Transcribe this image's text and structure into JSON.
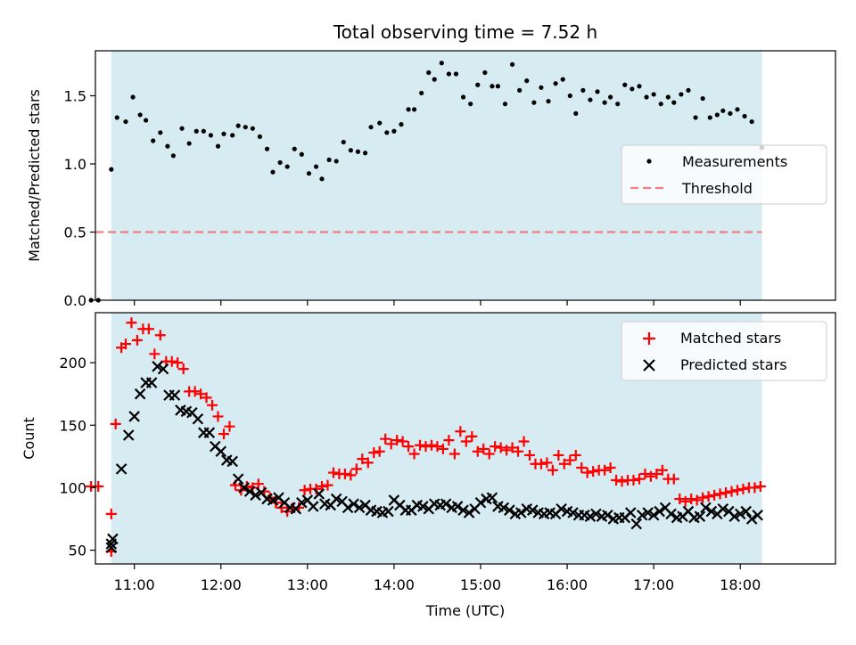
{
  "chart_data": [
    {
      "type": "scatter",
      "title": "Total observing time = 7.52 h",
      "xlabel": "",
      "ylabel": "Matched/Predicted stars",
      "xlim": [
        "10:33",
        "19:06"
      ],
      "ylim": [
        0,
        1.83
      ],
      "yticks": [
        0.0,
        0.5,
        1.0,
        1.5
      ],
      "yticklabels": [
        "0.0",
        "0.5",
        "1.0",
        "1.5"
      ],
      "grid": false,
      "legend_position": "center-right",
      "observing_window": [
        "10:44",
        "18:15"
      ],
      "threshold": {
        "name": "Threshold",
        "value": 0.5,
        "x_range": [
          "10:33",
          "18:15"
        ],
        "color": "#f08080"
      },
      "series": [
        {
          "name": "Measurements",
          "color": "#000000",
          "x": [
            "10:30",
            "10:35",
            "10:44",
            "10:48",
            "10:54",
            "10:59",
            "11:04",
            "11:08",
            "11:13",
            "11:18",
            "11:23",
            "11:27",
            "11:33",
            "11:38",
            "11:43",
            "11:48",
            "11:53",
            "11:58",
            "12:02",
            "12:08",
            "12:12",
            "12:17",
            "12:22",
            "12:27",
            "12:32",
            "12:36",
            "12:41",
            "12:46",
            "12:51",
            "12:56",
            "13:01",
            "13:06",
            "13:10",
            "13:15",
            "13:20",
            "13:25",
            "13:30",
            "13:35",
            "13:40",
            "13:44",
            "13:50",
            "13:55",
            "14:00",
            "14:05",
            "14:10",
            "14:14",
            "14:19",
            "14:24",
            "14:28",
            "14:33",
            "14:38",
            "14:43",
            "14:48",
            "14:53",
            "14:58",
            "15:03",
            "15:08",
            "15:12",
            "15:17",
            "15:22",
            "15:27",
            "15:32",
            "15:37",
            "15:42",
            "15:47",
            "15:52",
            "15:57",
            "16:02",
            "16:06",
            "16:11",
            "16:16",
            "16:21",
            "16:26",
            "16:30",
            "16:35",
            "16:40",
            "16:45",
            "16:50",
            "16:55",
            "17:00",
            "17:05",
            "17:10",
            "17:14",
            "17:19",
            "17:24",
            "17:29",
            "17:34",
            "17:39",
            "17:44",
            "17:48",
            "17:53",
            "17:58",
            "18:03",
            "18:08",
            "18:15"
          ],
          "y": [
            0.0,
            0.0,
            0.96,
            1.34,
            1.31,
            1.49,
            1.36,
            1.32,
            1.17,
            1.23,
            1.13,
            1.06,
            1.26,
            1.15,
            1.24,
            1.24,
            1.21,
            1.13,
            1.22,
            1.21,
            1.28,
            1.27,
            1.26,
            1.2,
            1.11,
            0.94,
            1.01,
            0.98,
            1.11,
            1.07,
            0.93,
            0.98,
            0.89,
            1.03,
            1.02,
            1.16,
            1.1,
            1.09,
            1.08,
            1.27,
            1.3,
            1.23,
            1.24,
            1.29,
            1.4,
            1.4,
            1.52,
            1.67,
            1.62,
            1.74,
            1.66,
            1.66,
            1.49,
            1.44,
            1.58,
            1.67,
            1.57,
            1.57,
            1.44,
            1.73,
            1.54,
            1.61,
            1.45,
            1.56,
            1.46,
            1.59,
            1.62,
            1.5,
            1.37,
            1.54,
            1.47,
            1.53,
            1.45,
            1.49,
            1.44,
            1.58,
            1.55,
            1.57,
            1.49,
            1.51,
            1.44,
            1.49,
            1.45,
            1.51,
            1.54,
            1.34,
            1.48,
            1.34,
            1.36,
            1.39,
            1.37,
            1.4,
            1.35,
            1.31,
            1.12
          ]
        }
      ]
    },
    {
      "type": "scatter",
      "title": "",
      "xlabel": "Time (UTC)",
      "ylabel": "Count",
      "xlim": [
        "10:33",
        "19:06"
      ],
      "ylim": [
        39,
        240
      ],
      "yticks": [
        50,
        100,
        150,
        200
      ],
      "xticks": [
        "11:00",
        "12:00",
        "13:00",
        "14:00",
        "15:00",
        "16:00",
        "17:00",
        "18:00"
      ],
      "xticklabels": [
        "11:00",
        "12:00",
        "13:00",
        "14:00",
        "15:00",
        "16:00",
        "17:00",
        "18:00"
      ],
      "grid": false,
      "legend_position": "top-right",
      "observing_window": [
        "10:44",
        "18:15"
      ],
      "series": [
        {
          "name": "Matched stars",
          "marker": "+",
          "color": "#ff0000",
          "x": [
            "10:30",
            "10:35",
            "10:44",
            "10:44",
            "10:47",
            "10:51",
            "10:54",
            "10:58",
            "11:02",
            "11:06",
            "11:10",
            "11:14",
            "11:18",
            "11:22",
            "11:26",
            "11:30",
            "11:34",
            "11:38",
            "11:42",
            "11:46",
            "11:50",
            "11:54",
            "11:58",
            "12:02",
            "12:06",
            "12:10",
            "12:14",
            "12:18",
            "12:22",
            "12:26",
            "12:30",
            "12:34",
            "12:38",
            "12:42",
            "12:46",
            "12:50",
            "12:54",
            "12:58",
            "13:02",
            "13:06",
            "13:10",
            "13:14",
            "13:18",
            "13:22",
            "13:26",
            "13:30",
            "13:34",
            "13:38",
            "13:42",
            "13:46",
            "13:50",
            "13:54",
            "13:58",
            "14:02",
            "14:06",
            "14:10",
            "14:14",
            "14:18",
            "14:22",
            "14:26",
            "14:30",
            "14:34",
            "14:38",
            "14:42",
            "14:46",
            "14:50",
            "14:54",
            "14:58",
            "15:02",
            "15:06",
            "15:10",
            "15:14",
            "15:18",
            "15:22",
            "15:26",
            "15:30",
            "15:34",
            "15:38",
            "15:42",
            "15:46",
            "15:50",
            "15:54",
            "15:58",
            "16:02",
            "16:06",
            "16:10",
            "16:14",
            "16:18",
            "16:22",
            "16:26",
            "16:30",
            "16:34",
            "16:38",
            "16:42",
            "16:46",
            "16:50",
            "16:54",
            "16:58",
            "17:02",
            "17:06",
            "17:10",
            "17:14",
            "17:18",
            "17:22",
            "17:26",
            "17:30",
            "17:34",
            "17:38",
            "17:42",
            "17:46",
            "17:50",
            "17:54",
            "17:58",
            "18:02",
            "18:06",
            "18:10",
            "18:14"
          ],
          "y": [
            101,
            101,
            49,
            79,
            151,
            212,
            215,
            232,
            218,
            227,
            227,
            207,
            222,
            201,
            201,
            200,
            195,
            177,
            177,
            175,
            172,
            166,
            157,
            143,
            149,
            102,
            98,
            101,
            100,
            103,
            97,
            92,
            88,
            84,
            81,
            84,
            84,
            98,
            99,
            99,
            101,
            102,
            112,
            111,
            111,
            110,
            115,
            123,
            120,
            128,
            129,
            139,
            135,
            138,
            137,
            133,
            127,
            134,
            133,
            134,
            133,
            131,
            138,
            127,
            145,
            137,
            141,
            129,
            131,
            127,
            133,
            132,
            130,
            132,
            129,
            137,
            126,
            119,
            119,
            120,
            114,
            126,
            119,
            122,
            126,
            116,
            112,
            113,
            114,
            114,
            116,
            106,
            105,
            106,
            106,
            107,
            111,
            109,
            111,
            114,
            107,
            107,
            91,
            89,
            91,
            90,
            92,
            93,
            94,
            95,
            96,
            97,
            98,
            99,
            100,
            100,
            101
          ]
        },
        {
          "name": "Predicted stars",
          "marker": "x",
          "color": "#000000",
          "x": [
            "10:44",
            "10:44",
            "10:45",
            "10:51",
            "10:56",
            "11:00",
            "11:04",
            "11:08",
            "11:12",
            "11:16",
            "11:20",
            "11:24",
            "11:28",
            "11:32",
            "11:36",
            "11:40",
            "11:44",
            "11:48",
            "11:52",
            "11:56",
            "12:00",
            "12:04",
            "12:08",
            "12:12",
            "12:16",
            "12:20",
            "12:24",
            "12:28",
            "12:32",
            "12:36",
            "12:40",
            "12:44",
            "12:48",
            "12:52",
            "12:56",
            "13:00",
            "13:04",
            "13:08",
            "13:12",
            "13:16",
            "13:20",
            "13:24",
            "13:28",
            "13:32",
            "13:36",
            "13:40",
            "13:44",
            "13:48",
            "13:52",
            "13:56",
            "14:00",
            "14:04",
            "14:08",
            "14:12",
            "14:16",
            "14:20",
            "14:24",
            "14:28",
            "14:32",
            "14:36",
            "14:40",
            "14:44",
            "14:48",
            "14:52",
            "14:56",
            "15:00",
            "15:04",
            "15:08",
            "15:12",
            "15:16",
            "15:20",
            "15:24",
            "15:28",
            "15:32",
            "15:36",
            "15:40",
            "15:44",
            "15:48",
            "15:52",
            "15:56",
            "16:00",
            "16:04",
            "16:08",
            "16:12",
            "16:16",
            "16:20",
            "16:24",
            "16:28",
            "16:32",
            "16:36",
            "16:40",
            "16:44",
            "16:48",
            "16:52",
            "16:56",
            "17:00",
            "17:04",
            "17:08",
            "17:12",
            "17:16",
            "17:20",
            "17:24",
            "17:28",
            "17:32",
            "17:36",
            "17:40",
            "17:44",
            "17:48",
            "17:52",
            "17:56",
            "18:00",
            "18:04",
            "18:08",
            "18:12"
          ],
          "y": [
            52,
            55,
            59,
            115,
            142,
            157,
            175,
            184,
            184,
            197,
            195,
            174,
            174,
            162,
            161,
            160,
            155,
            144,
            144,
            133,
            129,
            122,
            121,
            107,
            100,
            97,
            94,
            96,
            91,
            90,
            92,
            88,
            84,
            83,
            88,
            90,
            85,
            95,
            87,
            86,
            91,
            89,
            84,
            87,
            84,
            86,
            82,
            81,
            80,
            81,
            90,
            86,
            82,
            82,
            86,
            85,
            83,
            87,
            86,
            87,
            84,
            85,
            82,
            80,
            83,
            88,
            91,
            92,
            85,
            84,
            82,
            79,
            80,
            83,
            82,
            80,
            79,
            80,
            79,
            83,
            81,
            80,
            78,
            78,
            77,
            79,
            77,
            78,
            75,
            76,
            76,
            80,
            71,
            78,
            80,
            78,
            81,
            84,
            79,
            76,
            77,
            81,
            76,
            77,
            84,
            81,
            79,
            83,
            81,
            77,
            79,
            81,
            75,
            78
          ]
        }
      ]
    }
  ]
}
